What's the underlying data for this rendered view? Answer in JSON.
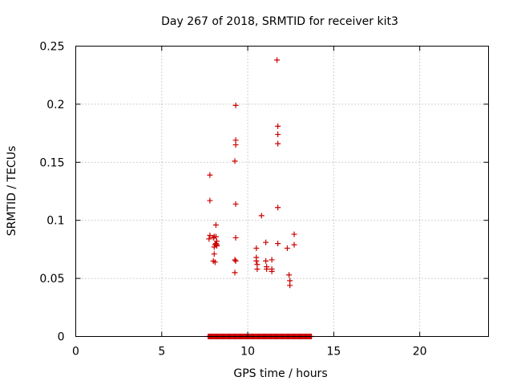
{
  "chart_data": {
    "type": "scatter",
    "title": "Day 267 of 2018, SRMTID for receiver kit3",
    "xlabel": "GPS time / hours",
    "ylabel": "SRMTID / TECUs",
    "xlim": [
      0,
      24
    ],
    "ylim": [
      0,
      0.25
    ],
    "xticks": [
      0,
      5,
      10,
      15,
      20
    ],
    "yticks": [
      0,
      0.05,
      0.1,
      0.15,
      0.2,
      0.25
    ],
    "xtick_labels": [
      "0",
      "5",
      "10",
      "15",
      "20"
    ],
    "ytick_labels": [
      "0",
      "0.05",
      "0.1",
      "0.15",
      "0.2",
      "0.25"
    ],
    "grid": true,
    "legend": "none",
    "marker": "plus",
    "color": "#cc0000",
    "series": [
      {
        "x": [
          7.8,
          7.8,
          7.8,
          7.75,
          8.0,
          8.0,
          8.05,
          8.05,
          8.05,
          8.1,
          8.1,
          8.15,
          8.15,
          8.15,
          8.2,
          8.2,
          8.2,
          9.3,
          9.3,
          9.3,
          9.25,
          9.3,
          9.3,
          9.25,
          9.3,
          9.25,
          10.8,
          10.5,
          10.5,
          10.5,
          10.55,
          10.55,
          11.05,
          11.05,
          11.1,
          11.1,
          11.4,
          11.4,
          11.4,
          11.7,
          11.75,
          11.75,
          11.75,
          11.75,
          11.75,
          12.3,
          12.4,
          12.45,
          12.45,
          12.7,
          12.7
        ],
        "y": [
          0.139,
          0.117,
          0.087,
          0.084,
          0.085,
          0.065,
          0.086,
          0.077,
          0.071,
          0.079,
          0.064,
          0.096,
          0.086,
          0.08,
          0.082,
          0.079,
          0.078,
          0.199,
          0.169,
          0.165,
          0.151,
          0.114,
          0.085,
          0.066,
          0.065,
          0.055,
          0.104,
          0.076,
          0.068,
          0.065,
          0.062,
          0.058,
          0.081,
          0.065,
          0.06,
          0.058,
          0.066,
          0.058,
          0.056,
          0.238,
          0.181,
          0.174,
          0.166,
          0.111,
          0.08,
          0.076,
          0.053,
          0.048,
          0.044,
          0.088,
          0.079
        ]
      },
      {
        "x_range": [
          7.7,
          13.7
        ],
        "step": 0.05,
        "y": 0
      }
    ]
  }
}
